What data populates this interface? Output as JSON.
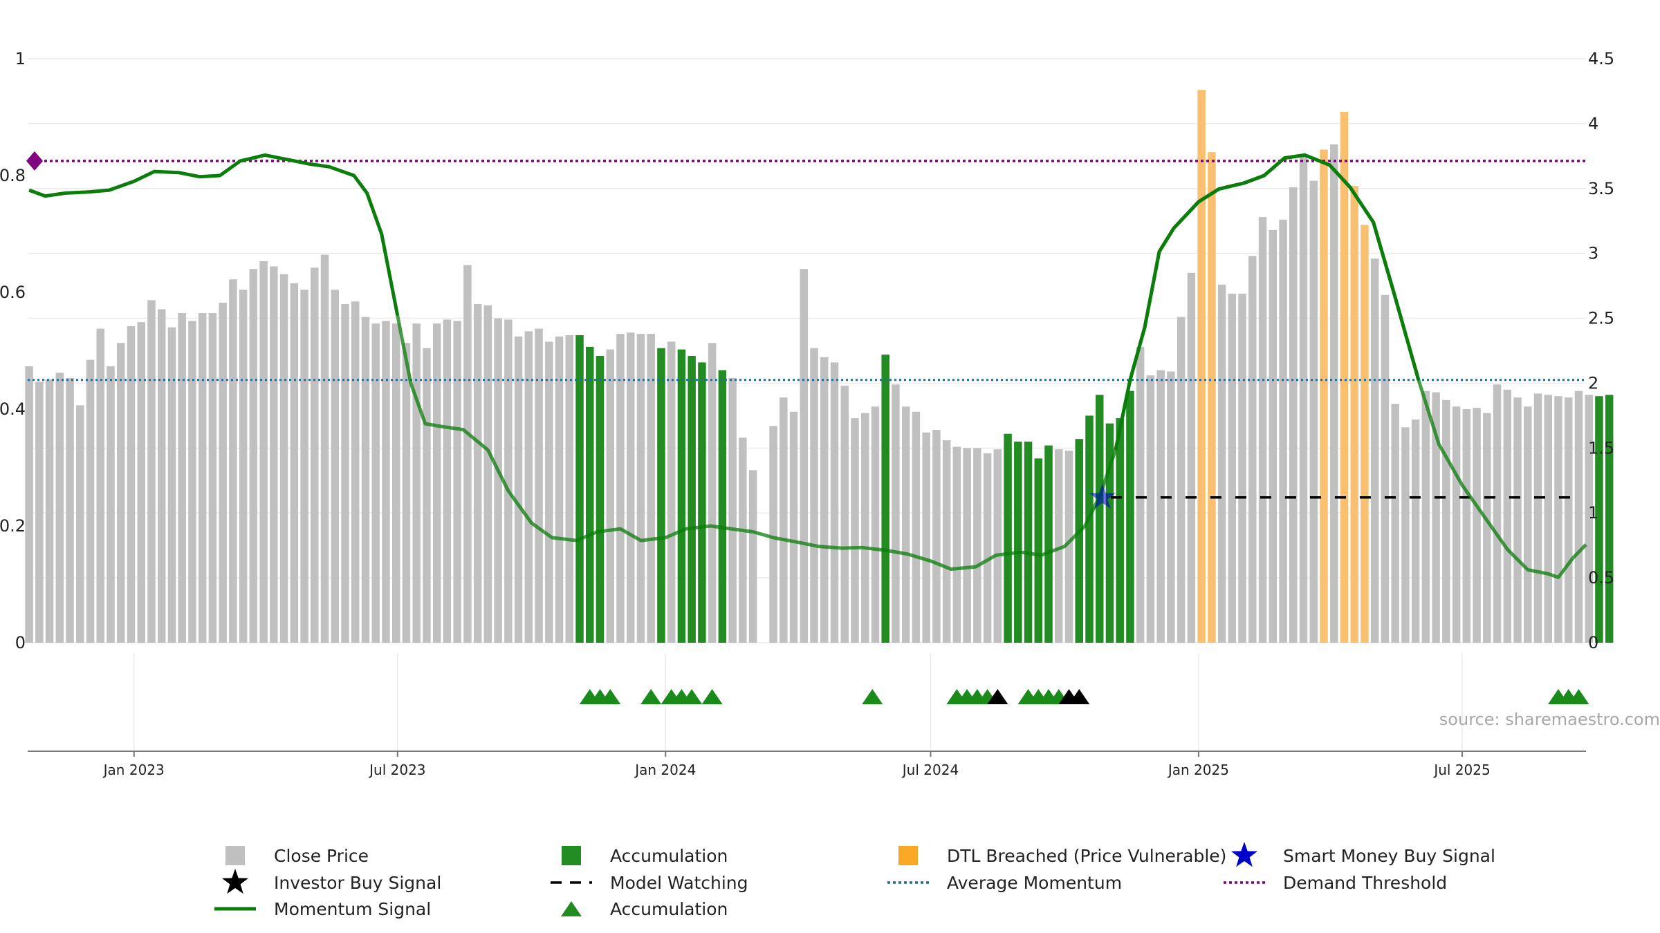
{
  "chart_data": {
    "type": "bar",
    "source_label": "source: sharemaestro.com",
    "left_axis": {
      "ylim": [
        0,
        1
      ],
      "ticks": [
        "0",
        "0.2",
        "0.4",
        "0.6",
        "0.8",
        "1"
      ]
    },
    "right_axis": {
      "ylim": [
        0,
        4.5
      ],
      "ticks": [
        "0",
        "0.5",
        "1",
        "1.5",
        "2",
        "2.5",
        "3",
        "3.5",
        "4",
        "4.5"
      ]
    },
    "x_axis": {
      "range": [
        "2022-10-20",
        "2025-09-24"
      ],
      "ticks": [
        {
          "date": "2023-01-01",
          "label": "Jan 2023"
        },
        {
          "date": "2023-07-01",
          "label": "Jul 2023"
        },
        {
          "date": "2024-01-01",
          "label": "Jan 2024"
        },
        {
          "date": "2024-07-01",
          "label": "Jul 2024"
        },
        {
          "date": "2025-01-01",
          "label": "Jan 2025"
        },
        {
          "date": "2025-07-01",
          "label": "Jul 2025"
        }
      ]
    },
    "colors": {
      "close_price": "#c0c0c0",
      "accumulation": "#228b22",
      "dtl_breached": "#f8c070",
      "momentum": "#0a7d0a",
      "average_momentum": "#1f6e9c",
      "demand_threshold": "#800080",
      "smart_money": "#0000cc",
      "investor": "#000000",
      "model_watching": "#000000"
    },
    "bars": {
      "start": "2022-10-21",
      "interval_days": 7,
      "values": [
        2.13,
        2.01,
        2.03,
        2.08,
        2.04,
        1.83,
        2.18,
        2.42,
        2.13,
        2.31,
        2.44,
        2.47,
        2.64,
        2.57,
        2.43,
        2.54,
        2.48,
        2.54,
        2.54,
        2.62,
        2.8,
        2.72,
        2.88,
        2.94,
        2.9,
        2.84,
        2.77,
        2.72,
        2.89,
        2.99,
        2.72,
        2.61,
        2.63,
        2.51,
        2.46,
        2.48,
        2.46,
        2.31,
        2.46,
        2.27,
        2.46,
        2.49,
        2.48,
        2.91,
        2.61,
        2.6,
        2.5,
        2.49,
        2.36,
        2.4,
        2.42,
        2.32,
        2.36,
        2.37,
        2.37,
        2.28,
        2.21,
        2.26,
        2.38,
        2.39,
        2.38,
        2.38,
        2.27,
        2.32,
        2.26,
        2.21,
        2.16,
        2.31,
        2.1,
        2.04,
        1.58,
        1.33,
        null,
        1.67,
        1.89,
        1.78,
        2.88,
        2.27,
        2.2,
        2.16,
        1.98,
        1.73,
        1.77,
        1.82,
        2.22,
        1.99,
        1.82,
        1.78,
        1.62,
        1.64,
        1.56,
        1.51,
        1.5,
        1.5,
        1.46,
        1.49,
        1.61,
        1.55,
        1.55,
        1.42,
        1.52,
        1.49,
        1.48,
        1.57,
        1.75,
        1.91,
        1.69,
        1.73,
        1.94,
        2.28,
        2.06,
        2.1,
        2.09,
        2.51,
        2.85,
        4.26,
        3.78,
        2.76,
        2.69,
        2.69,
        2.98,
        3.28,
        3.18,
        3.26,
        3.51,
        3.76,
        3.56,
        3.8,
        3.84,
        4.09,
        3.52,
        3.22,
        2.96,
        2.68,
        1.84,
        1.66,
        1.72,
        1.94,
        1.93,
        1.87,
        1.82,
        1.8,
        1.81,
        1.77,
        1.99,
        1.95,
        1.89,
        1.82,
        1.92,
        1.91,
        1.9,
        1.89,
        1.94,
        1.91,
        1.9,
        1.91
      ],
      "types": [
        "c",
        "c",
        "c",
        "c",
        "c",
        "c",
        "c",
        "c",
        "c",
        "c",
        "c",
        "c",
        "c",
        "c",
        "c",
        "c",
        "c",
        "c",
        "c",
        "c",
        "c",
        "c",
        "c",
        "c",
        "c",
        "c",
        "c",
        "c",
        "c",
        "c",
        "c",
        "c",
        "c",
        "c",
        "c",
        "c",
        "c",
        "c",
        "c",
        "c",
        "c",
        "c",
        "c",
        "c",
        "c",
        "c",
        "c",
        "c",
        "c",
        "c",
        "c",
        "c",
        "c",
        "c",
        "a",
        "a",
        "a",
        "c",
        "c",
        "c",
        "c",
        "c",
        "a",
        "c",
        "a",
        "a",
        "a",
        "c",
        "a",
        "c",
        "c",
        "c",
        "c",
        "c",
        "c",
        "c",
        "c",
        "c",
        "c",
        "c",
        "c",
        "c",
        "c",
        "c",
        "a",
        "c",
        "c",
        "c",
        "c",
        "c",
        "c",
        "c",
        "c",
        "c",
        "c",
        "c",
        "a",
        "a",
        "a",
        "a",
        "a",
        "c",
        "c",
        "a",
        "a",
        "a",
        "a",
        "a",
        "a",
        "c",
        "c",
        "c",
        "c",
        "c",
        "c",
        "d",
        "d",
        "c",
        "c",
        "c",
        "c",
        "c",
        "c",
        "c",
        "c",
        "c",
        "c",
        "d",
        "c",
        "d",
        "d",
        "d",
        "c",
        "c",
        "c",
        "c",
        "c",
        "c",
        "c",
        "c",
        "c",
        "c",
        "c",
        "c",
        "c",
        "c",
        "c",
        "c",
        "c",
        "c",
        "c",
        "c",
        "c",
        "c",
        "a",
        "a",
        "a"
      ]
    },
    "momentum": {
      "points": [
        [
          "2022-10-21",
          0.775
        ],
        [
          "2022-11-01",
          0.765
        ],
        [
          "2022-11-15",
          0.77
        ],
        [
          "2022-12-01",
          0.772
        ],
        [
          "2022-12-15",
          0.775
        ],
        [
          "2023-01-01",
          0.79
        ],
        [
          "2023-01-15",
          0.807
        ],
        [
          "2023-02-01",
          0.805
        ],
        [
          "2023-02-15",
          0.798
        ],
        [
          "2023-03-01",
          0.8
        ],
        [
          "2023-03-15",
          0.825
        ],
        [
          "2023-04-01",
          0.835
        ],
        [
          "2023-04-15",
          0.828
        ],
        [
          "2023-05-01",
          0.82
        ],
        [
          "2023-05-15",
          0.815
        ],
        [
          "2023-06-01",
          0.8
        ],
        [
          "2023-06-10",
          0.77
        ],
        [
          "2023-06-20",
          0.7
        ],
        [
          "2023-07-01",
          0.56
        ],
        [
          "2023-07-10",
          0.445
        ],
        [
          "2023-07-20",
          0.375
        ],
        [
          "2023-08-01",
          0.37
        ],
        [
          "2023-08-15",
          0.365
        ],
        [
          "2023-09-01",
          0.33
        ],
        [
          "2023-09-15",
          0.26
        ],
        [
          "2023-10-01",
          0.205
        ],
        [
          "2023-10-15",
          0.18
        ],
        [
          "2023-11-01",
          0.175
        ],
        [
          "2023-11-15",
          0.19
        ],
        [
          "2023-12-01",
          0.195
        ],
        [
          "2023-12-15",
          0.175
        ],
        [
          "2024-01-01",
          0.18
        ],
        [
          "2024-01-15",
          0.195
        ],
        [
          "2024-02-01",
          0.2
        ],
        [
          "2024-02-15",
          0.195
        ],
        [
          "2024-03-01",
          0.19
        ],
        [
          "2024-03-15",
          0.18
        ],
        [
          "2024-04-01",
          0.172
        ],
        [
          "2024-04-15",
          0.165
        ],
        [
          "2024-05-01",
          0.162
        ],
        [
          "2024-05-15",
          0.163
        ],
        [
          "2024-06-01",
          0.158
        ],
        [
          "2024-06-15",
          0.152
        ],
        [
          "2024-07-01",
          0.14
        ],
        [
          "2024-07-15",
          0.126
        ],
        [
          "2024-08-01",
          0.13
        ],
        [
          "2024-08-15",
          0.15
        ],
        [
          "2024-09-01",
          0.155
        ],
        [
          "2024-09-15",
          0.15
        ],
        [
          "2024-10-01",
          0.165
        ],
        [
          "2024-10-15",
          0.2
        ],
        [
          "2024-10-25",
          0.25
        ],
        [
          "2024-11-05",
          0.33
        ],
        [
          "2024-11-15",
          0.45
        ],
        [
          "2024-11-25",
          0.54
        ],
        [
          "2024-12-05",
          0.67
        ],
        [
          "2024-12-15",
          0.71
        ],
        [
          "2025-01-01",
          0.755
        ],
        [
          "2025-01-15",
          0.777
        ],
        [
          "2025-02-01",
          0.787
        ],
        [
          "2025-02-15",
          0.8
        ],
        [
          "2025-03-01",
          0.83
        ],
        [
          "2025-03-15",
          0.835
        ],
        [
          "2025-04-01",
          0.818
        ],
        [
          "2025-04-15",
          0.78
        ],
        [
          "2025-05-01",
          0.72
        ],
        [
          "2025-05-15",
          0.6
        ],
        [
          "2025-06-01",
          0.45
        ],
        [
          "2025-06-15",
          0.34
        ],
        [
          "2025-07-01",
          0.27
        ],
        [
          "2025-07-15",
          0.22
        ],
        [
          "2025-08-01",
          0.16
        ],
        [
          "2025-08-15",
          0.125
        ],
        [
          "2025-08-29",
          0.118
        ],
        [
          "2025-09-05",
          0.112
        ],
        [
          "2025-09-15",
          0.145
        ],
        [
          "2025-09-24",
          0.168
        ]
      ],
      "solid_until": "2023-07-05"
    },
    "average_momentum": 0.45,
    "demand_threshold": 0.825,
    "smart_money_signal": {
      "date": "2024-10-27",
      "value": 1.12
    },
    "model_watching": {
      "from": "2024-10-27",
      "to": "2025-09-15",
      "value": 1.12
    },
    "signal_triangles": [
      {
        "date": "2023-11-10",
        "color": "green"
      },
      {
        "date": "2023-11-17",
        "color": "green"
      },
      {
        "date": "2023-11-24",
        "color": "green"
      },
      {
        "date": "2023-12-22",
        "color": "green"
      },
      {
        "date": "2024-01-05",
        "color": "green"
      },
      {
        "date": "2024-01-12",
        "color": "green"
      },
      {
        "date": "2024-01-19",
        "color": "green"
      },
      {
        "date": "2024-02-02",
        "color": "green"
      },
      {
        "date": "2024-05-22",
        "color": "green"
      },
      {
        "date": "2024-07-19",
        "color": "green"
      },
      {
        "date": "2024-07-26",
        "color": "green"
      },
      {
        "date": "2024-08-02",
        "color": "green"
      },
      {
        "date": "2024-08-09",
        "color": "green"
      },
      {
        "date": "2024-08-16",
        "color": "black"
      },
      {
        "date": "2024-09-06",
        "color": "green"
      },
      {
        "date": "2024-09-13",
        "color": "green"
      },
      {
        "date": "2024-09-20",
        "color": "green"
      },
      {
        "date": "2024-09-27",
        "color": "green"
      },
      {
        "date": "2024-10-04",
        "color": "black"
      },
      {
        "date": "2024-10-11",
        "color": "black"
      },
      {
        "date": "2025-09-05",
        "color": "green"
      },
      {
        "date": "2025-09-12",
        "color": "green"
      },
      {
        "date": "2025-09-19",
        "color": "green"
      }
    ],
    "legend": [
      {
        "label": "Close Price",
        "symbol": "square",
        "color": "#c0c0c0"
      },
      {
        "label": "Accumulation",
        "symbol": "square",
        "color": "#228b22"
      },
      {
        "label": "DTL Breached (Price Vulnerable)",
        "symbol": "square",
        "color": "#f9a825"
      },
      {
        "label": "Smart Money Buy Signal",
        "symbol": "star",
        "color": "#0000cc"
      },
      {
        "label": "Investor Buy Signal",
        "symbol": "star",
        "color": "#000000"
      },
      {
        "label": "Model Watching",
        "symbol": "dash",
        "color": "#000000"
      },
      {
        "label": "Average Momentum",
        "symbol": "dotted",
        "color": "#1f6e9c"
      },
      {
        "label": "Demand Threshold",
        "symbol": "dotted",
        "color": "#800080"
      },
      {
        "label": "Momentum Signal",
        "symbol": "line",
        "color": "#0a7d0a"
      },
      {
        "label": "Accumulation",
        "symbol": "triangle",
        "color": "#228b22"
      }
    ]
  }
}
